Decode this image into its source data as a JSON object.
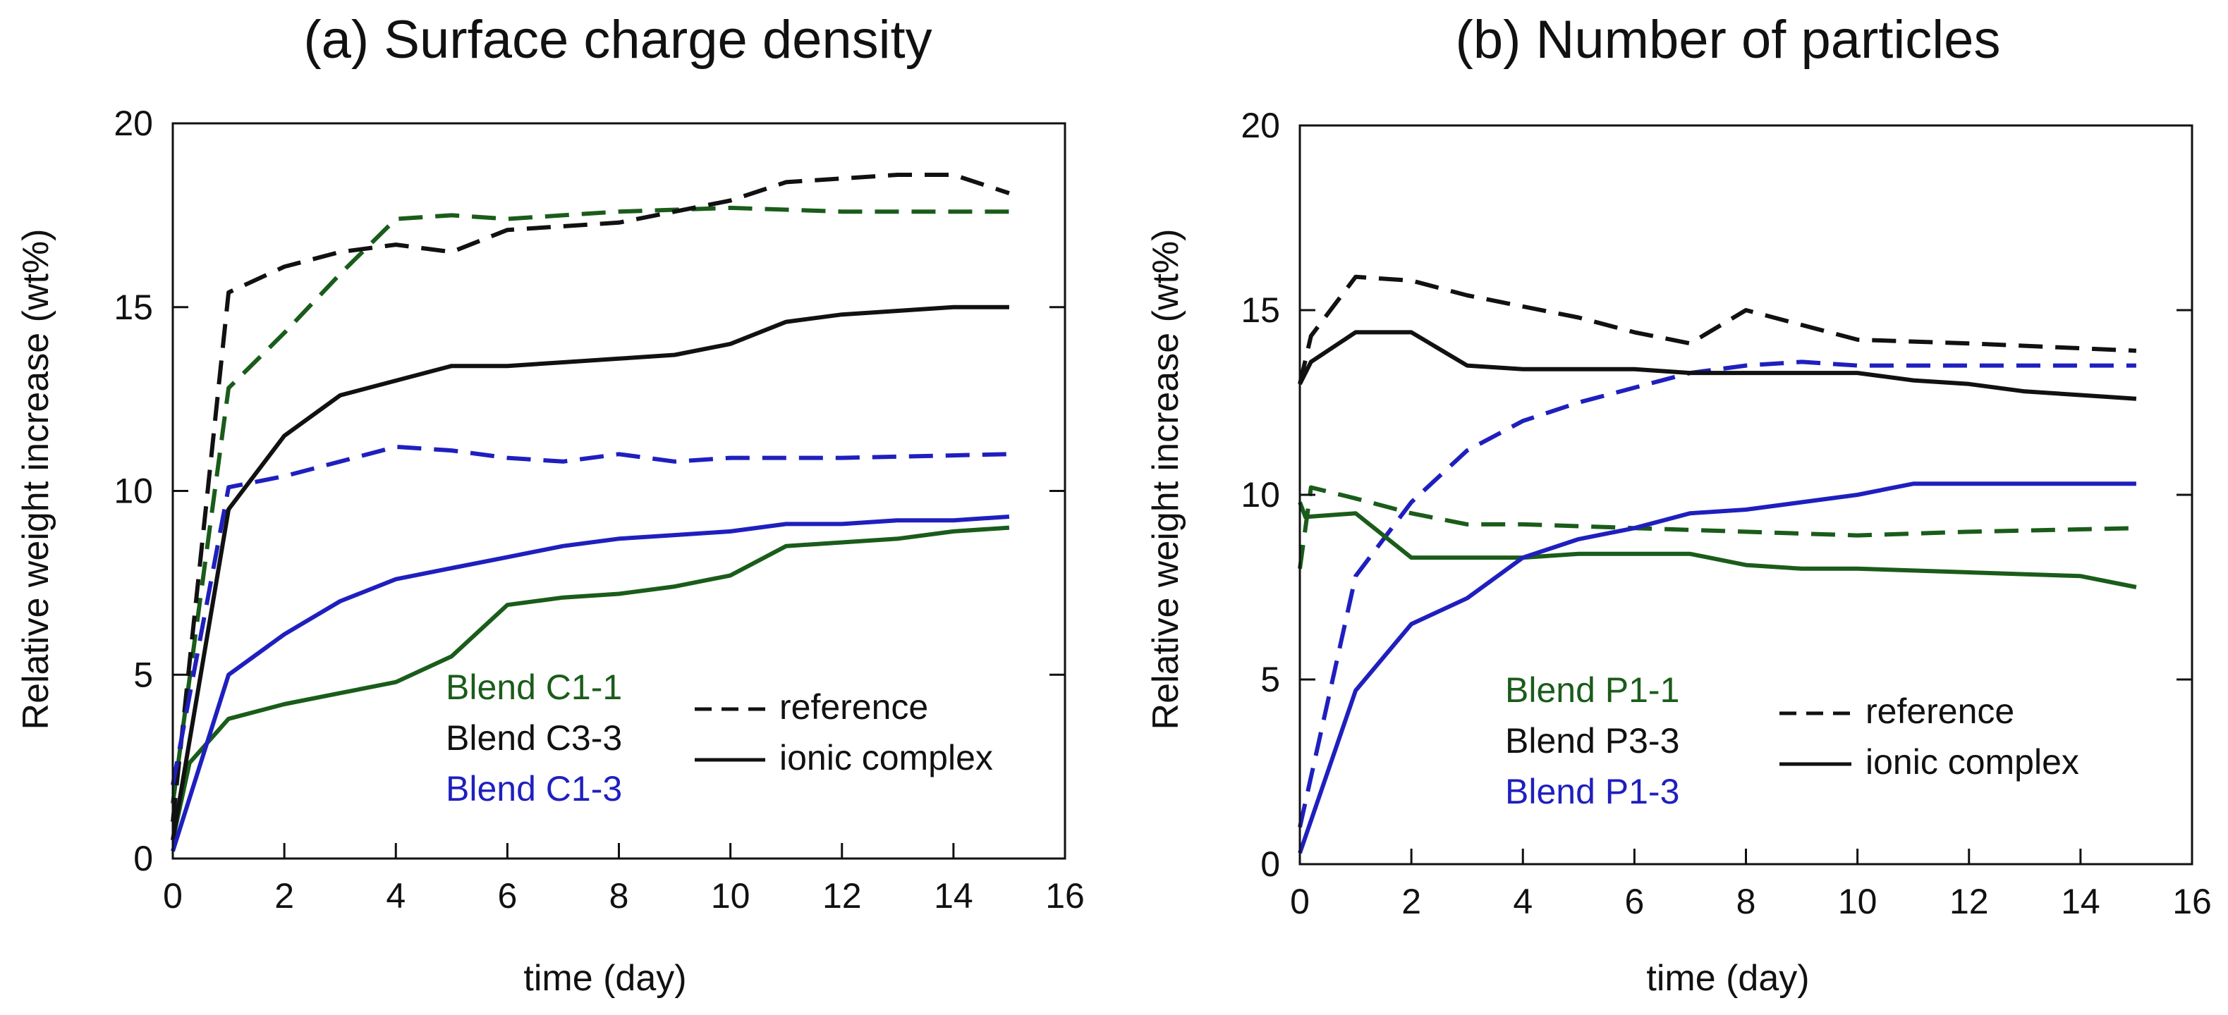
{
  "colors": {
    "green": "#1a5c1a",
    "black": "#111111",
    "blue": "#1f1fbf"
  },
  "chart_data": [
    {
      "type": "line",
      "title": "(a) Surface charge density",
      "xlabel": "time (day)",
      "ylabel": "Relative weight increase (wt%)",
      "xlim": [
        0,
        16
      ],
      "ylim": [
        0,
        20
      ],
      "xticks": [
        0,
        2,
        4,
        6,
        8,
        10,
        12,
        14,
        16
      ],
      "yticks": [
        0,
        5,
        10,
        15,
        20
      ],
      "legend_colors": [
        {
          "label": "Blend C1-1",
          "color": "green"
        },
        {
          "label": "Blend C3-3",
          "color": "black"
        },
        {
          "label": "Blend C1-3",
          "color": "blue"
        }
      ],
      "legend_styles": [
        {
          "label": "reference",
          "style": "dashed"
        },
        {
          "label": "ionic complex",
          "style": "solid"
        }
      ],
      "series": [
        {
          "name": "Blend C1-1 reference",
          "color": "green",
          "style": "dashed",
          "x": [
            0,
            1,
            2,
            3,
            4,
            5,
            6,
            7,
            8,
            10,
            12,
            14,
            15
          ],
          "y": [
            1.5,
            12.8,
            14.3,
            15.9,
            17.4,
            17.5,
            17.4,
            17.5,
            17.6,
            17.7,
            17.6,
            17.6,
            17.6
          ]
        },
        {
          "name": "Blend C3-3 reference",
          "color": "black",
          "style": "dashed",
          "x": [
            0,
            1,
            2,
            3,
            4,
            5,
            6,
            7,
            8,
            9,
            10,
            11,
            12,
            13,
            14,
            15
          ],
          "y": [
            1.0,
            15.4,
            16.1,
            16.5,
            16.7,
            16.5,
            17.1,
            17.2,
            17.3,
            17.6,
            17.9,
            18.4,
            18.5,
            18.6,
            18.6,
            18.1
          ]
        },
        {
          "name": "Blend C1-3 reference",
          "color": "blue",
          "style": "dashed",
          "x": [
            0,
            1,
            2,
            3,
            4,
            5,
            6,
            7,
            8,
            9,
            10,
            12,
            15
          ],
          "y": [
            2.0,
            10.1,
            10.4,
            10.8,
            11.2,
            11.1,
            10.9,
            10.8,
            11.0,
            10.8,
            10.9,
            10.9,
            11.0
          ]
        },
        {
          "name": "Blend C1-1 ionic complex",
          "color": "green",
          "style": "solid",
          "x": [
            0,
            0.3,
            1,
            2,
            3,
            4,
            5,
            6,
            7,
            8,
            9,
            10,
            11,
            12,
            13,
            14,
            15
          ],
          "y": [
            0.5,
            2.6,
            3.8,
            4.2,
            4.5,
            4.8,
            5.5,
            6.9,
            7.1,
            7.2,
            7.4,
            7.7,
            8.5,
            8.6,
            8.7,
            8.9,
            9.0
          ]
        },
        {
          "name": "Blend C3-3 ionic complex",
          "color": "black",
          "style": "solid",
          "x": [
            0,
            1,
            2,
            3,
            4,
            5,
            6,
            7,
            8,
            9,
            10,
            11,
            12,
            13,
            14,
            15
          ],
          "y": [
            0.5,
            9.5,
            11.5,
            12.6,
            13.0,
            13.4,
            13.4,
            13.5,
            13.6,
            13.7,
            14.0,
            14.6,
            14.8,
            14.9,
            15.0,
            15.0
          ]
        },
        {
          "name": "Blend C1-3 ionic complex",
          "color": "blue",
          "style": "solid",
          "x": [
            0,
            1,
            2,
            3,
            4,
            5,
            6,
            7,
            8,
            9,
            10,
            11,
            12,
            13,
            14,
            15
          ],
          "y": [
            0.2,
            5.0,
            6.1,
            7.0,
            7.6,
            7.9,
            8.2,
            8.5,
            8.7,
            8.8,
            8.9,
            9.1,
            9.1,
            9.2,
            9.2,
            9.3
          ]
        }
      ]
    },
    {
      "type": "line",
      "title": "(b) Number of particles",
      "xlabel": "time (day)",
      "ylabel": "Relative weight increase (wt%)",
      "xlim": [
        0,
        16
      ],
      "ylim": [
        0,
        20
      ],
      "xticks": [
        0,
        2,
        4,
        6,
        8,
        10,
        12,
        14,
        16
      ],
      "yticks": [
        0,
        5,
        10,
        15,
        20
      ],
      "legend_colors": [
        {
          "label": "Blend P1-1",
          "color": "green"
        },
        {
          "label": "Blend P3-3",
          "color": "black"
        },
        {
          "label": "Blend P1-3",
          "color": "blue"
        }
      ],
      "legend_styles": [
        {
          "label": "reference",
          "style": "dashed"
        },
        {
          "label": "ionic complex",
          "style": "solid"
        }
      ],
      "series": [
        {
          "name": "Blend P1-1 reference",
          "color": "green",
          "style": "dashed",
          "x": [
            0,
            0.2,
            1,
            2,
            3,
            4,
            6,
            8,
            10,
            12,
            15
          ],
          "y": [
            8.0,
            10.2,
            9.9,
            9.5,
            9.2,
            9.2,
            9.1,
            9.0,
            8.9,
            9.0,
            9.1
          ]
        },
        {
          "name": "Blend P3-3 reference",
          "color": "black",
          "style": "dashed",
          "x": [
            0,
            0.2,
            1,
            2,
            3,
            4,
            5,
            6,
            7,
            8,
            9,
            10,
            12,
            15
          ],
          "y": [
            13.0,
            14.3,
            15.9,
            15.8,
            15.4,
            15.1,
            14.8,
            14.4,
            14.1,
            15.0,
            14.6,
            14.2,
            14.1,
            13.9
          ]
        },
        {
          "name": "Blend P1-3 reference",
          "color": "blue",
          "style": "dashed",
          "x": [
            0,
            1,
            2,
            3,
            4,
            5,
            6,
            7,
            8,
            9,
            10,
            12,
            15
          ],
          "y": [
            1.0,
            7.8,
            9.8,
            11.2,
            12.0,
            12.5,
            12.9,
            13.3,
            13.5,
            13.6,
            13.5,
            13.5,
            13.5
          ]
        },
        {
          "name": "Blend P1-1 ionic complex",
          "color": "green",
          "style": "solid",
          "x": [
            0,
            0.1,
            1,
            2,
            3,
            4,
            5,
            6,
            7,
            8,
            9,
            10,
            12,
            14,
            15
          ],
          "y": [
            9.8,
            9.4,
            9.5,
            8.3,
            8.3,
            8.3,
            8.4,
            8.4,
            8.4,
            8.1,
            8.0,
            8.0,
            7.9,
            7.8,
            7.5
          ]
        },
        {
          "name": "Blend P3-3 ionic complex",
          "color": "black",
          "style": "solid",
          "x": [
            0,
            0.2,
            1,
            2,
            3,
            4,
            5,
            6,
            7,
            8,
            9,
            10,
            11,
            12,
            13,
            14,
            15
          ],
          "y": [
            13.0,
            13.6,
            14.4,
            14.4,
            13.5,
            13.4,
            13.4,
            13.4,
            13.3,
            13.3,
            13.3,
            13.3,
            13.1,
            13.0,
            12.8,
            12.7,
            12.6
          ]
        },
        {
          "name": "Blend P1-3 ionic complex",
          "color": "blue",
          "style": "solid",
          "x": [
            0,
            1,
            2,
            3,
            4,
            5,
            6,
            7,
            8,
            9,
            10,
            11,
            12,
            13,
            14,
            15
          ],
          "y": [
            0.3,
            4.7,
            6.5,
            7.2,
            8.3,
            8.8,
            9.1,
            9.5,
            9.6,
            9.8,
            10.0,
            10.3,
            10.3,
            10.3,
            10.3,
            10.3
          ]
        }
      ]
    }
  ]
}
